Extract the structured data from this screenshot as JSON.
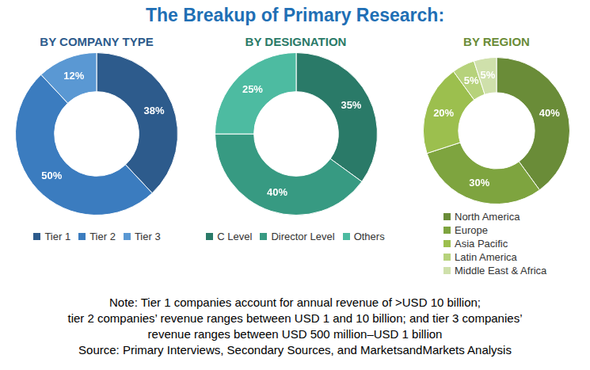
{
  "title": "The Breakup of Primary Research:",
  "note": [
    "Note: Tier 1 companies account for annual revenue of >USD 10 billion;",
    "tier 2 companies’ revenue ranges between USD 1 and 10 billion; and tier 3 companies’",
    "revenue ranges between USD 500 million–USD 1 billion",
    "Source: Primary Interviews, Secondary Sources, and MarketsandMarkets Analysis"
  ],
  "chart_data": [
    {
      "type": "doughnut",
      "title": "BY COMPANY TYPE",
      "categories": [
        "Tier 1",
        "Tier 2",
        "Tier 3"
      ],
      "values": [
        38,
        50,
        12
      ],
      "value_labels": [
        "38%",
        "50%",
        "12%"
      ],
      "colors": [
        "#2d5b8c",
        "#3b7cbf",
        "#5a98d3"
      ],
      "data_labels": true,
      "legend": "bottom"
    },
    {
      "type": "doughnut",
      "title": "BY DESIGNATION",
      "categories": [
        "C Level",
        "Director Level",
        "Others"
      ],
      "values": [
        35,
        40,
        25
      ],
      "value_labels": [
        "35%",
        "40%",
        "25%"
      ],
      "colors": [
        "#2a7a68",
        "#379a82",
        "#4dbba1"
      ],
      "data_labels": true,
      "legend": "bottom"
    },
    {
      "type": "doughnut",
      "title": "BY REGION",
      "categories": [
        "North America",
        "Europe",
        "Asia Pacific",
        "Latin America",
        "Middle East & Africa"
      ],
      "values": [
        40,
        30,
        20,
        5,
        5
      ],
      "value_labels": [
        "40%",
        "30%",
        "20%",
        "5%",
        "5%"
      ],
      "colors": [
        "#6a8c38",
        "#7ea43f",
        "#9cbf4e",
        "#b6d27b",
        "#cfe0ab"
      ],
      "data_labels": true,
      "legend": "bottom"
    }
  ]
}
